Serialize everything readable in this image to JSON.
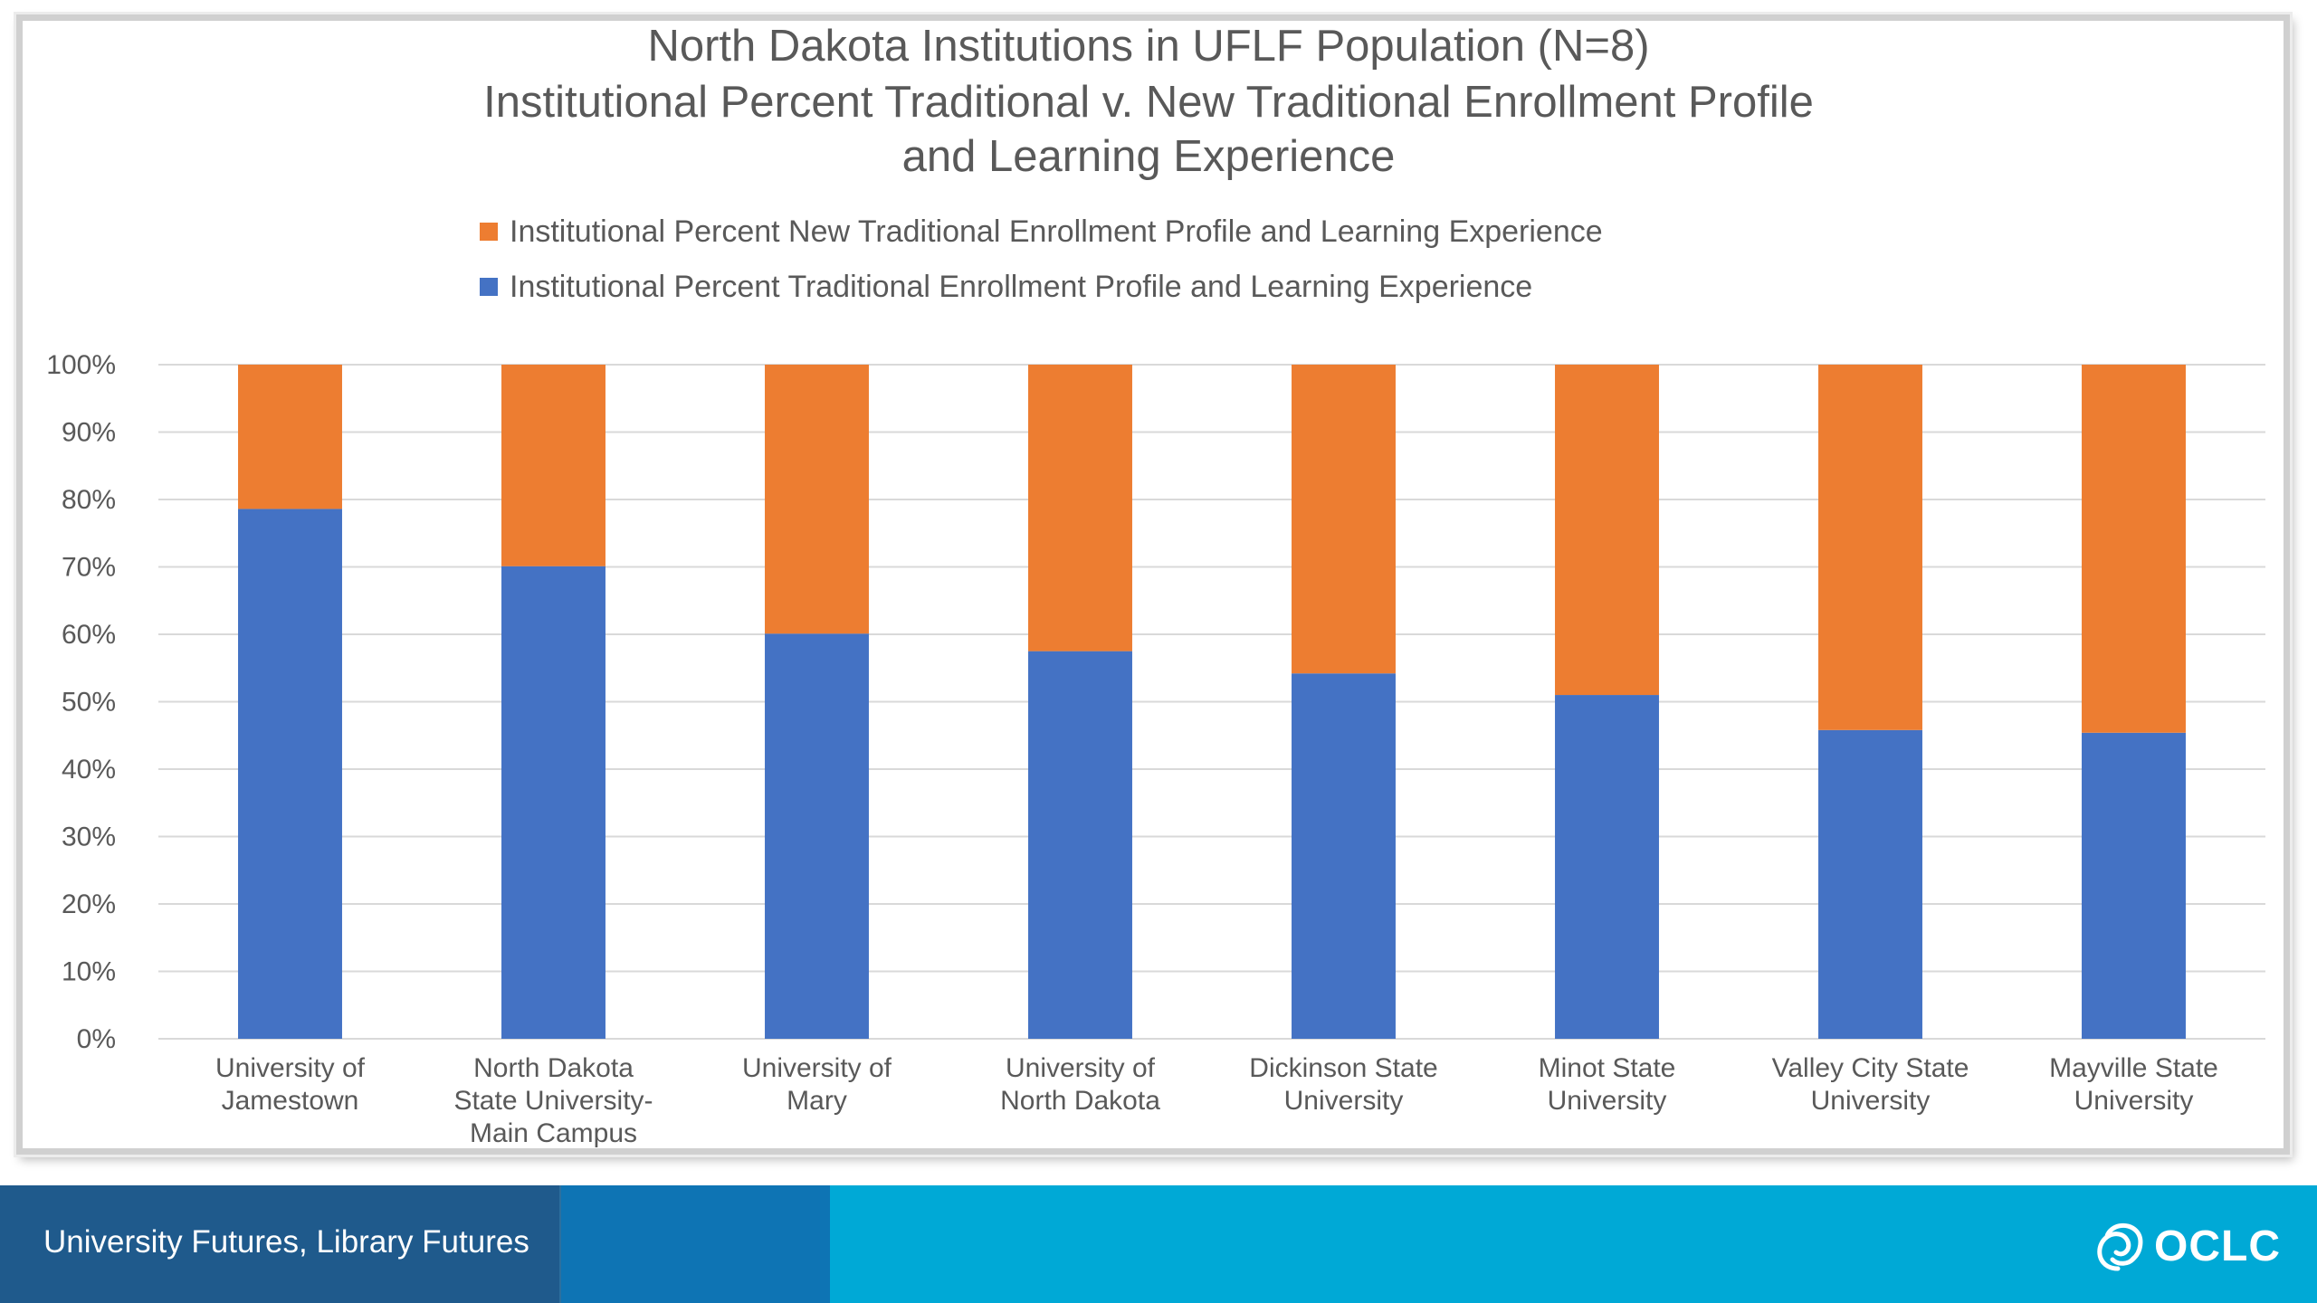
{
  "chart_data": {
    "type": "bar",
    "stacked": true,
    "percent_stacked": true,
    "title_lines": [
      "North Dakota Institutions in UFLF Population (N=8)",
      "Institutional Percent Traditional v. New Traditional Enrollment Profile",
      "and Learning Experience"
    ],
    "categories": [
      [
        "University of",
        "Jamestown"
      ],
      [
        "North Dakota",
        "State University-",
        "Main Campus"
      ],
      [
        "University of",
        "Mary"
      ],
      [
        "University of",
        "North Dakota"
      ],
      [
        "Dickinson State",
        "University"
      ],
      [
        "Minot State",
        "University"
      ],
      [
        "Valley City State",
        "University"
      ],
      [
        "Mayville State",
        "University"
      ]
    ],
    "series": [
      {
        "name": "Institutional Percent Traditional Enrollment Profile and Learning Experience",
        "color": "#4472c4",
        "values": [
          78.6,
          70.1,
          60.1,
          57.5,
          54.2,
          51.0,
          45.8,
          45.4
        ]
      },
      {
        "name": "Institutional Percent New Traditional Enrollment Profile and Learning Experience",
        "color": "#ed7d31",
        "values": [
          21.4,
          29.9,
          39.9,
          42.5,
          45.8,
          49.0,
          54.2,
          54.6
        ]
      }
    ],
    "legend_order": [
      1,
      0
    ],
    "legend_position": "top",
    "yticks": [
      "0%",
      "10%",
      "20%",
      "30%",
      "40%",
      "50%",
      "60%",
      "70%",
      "80%",
      "90%",
      "100%"
    ],
    "ylim": [
      0,
      100
    ],
    "grid": true
  },
  "footer": {
    "text": "University Futures, Library Futures",
    "logo_text": "OCLC",
    "logo_icon": "oclc-swirl-icon",
    "colors": {
      "bar": "#00a9d6",
      "block1": "#1f5a8c",
      "block2": "#0e74b4"
    }
  }
}
